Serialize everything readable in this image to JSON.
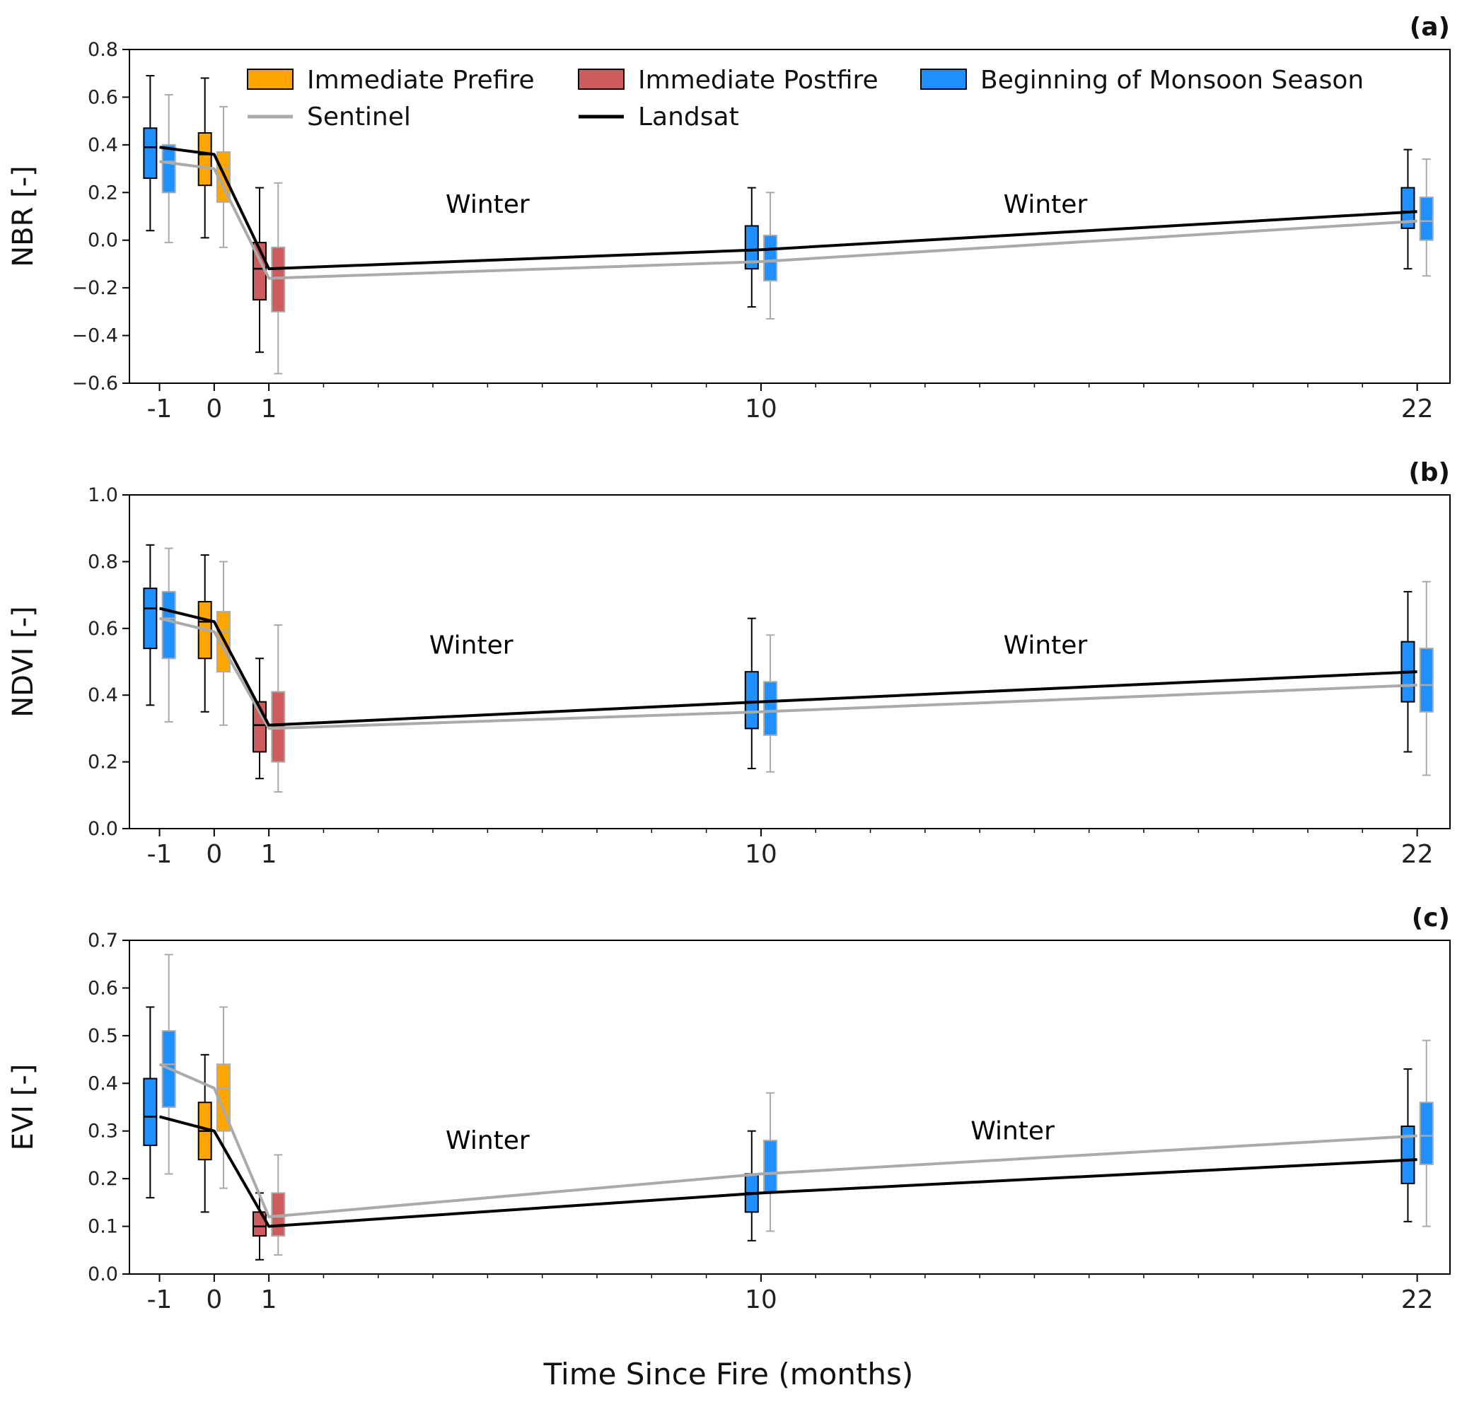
{
  "chart_data": {
    "type": "box+line",
    "xlabel": "Time Since Fire (months)",
    "x_ticks": [
      -1,
      0,
      1,
      10,
      22
    ],
    "x_range": [
      -1.55,
      22.6
    ],
    "legend": {
      "placement": "top of panel (a)",
      "entries": [
        {
          "label": "Immediate Prefire",
          "kind": "box",
          "color": "#FFA500"
        },
        {
          "label": "Immediate Postfire",
          "kind": "box",
          "color": "#CD5C5C"
        },
        {
          "label": "Beginning of Monsoon Season",
          "kind": "box",
          "color": "#1E90FF"
        },
        {
          "label": "Sentinel",
          "kind": "line",
          "color": "#AAAAAA"
        },
        {
          "label": "Landsat",
          "kind": "line",
          "color": "#000000"
        }
      ]
    },
    "box_colors_by_x": {
      "-1": "#1E90FF",
      "0": "#FFA500",
      "1": "#CD5C5C",
      "10": "#1E90FF",
      "22": "#1E90FF"
    },
    "panels": [
      {
        "id": "a",
        "label": "(a)",
        "ylabel": "NBR [-]",
        "ylim": [
          -0.6,
          0.8
        ],
        "yticks": [
          -0.6,
          -0.4,
          -0.2,
          0.0,
          0.2,
          0.4,
          0.6,
          0.8
        ],
        "ytick_labels": [
          "−0.6",
          "−0.4",
          "−0.2",
          "0.0",
          "0.2",
          "0.4",
          "0.6",
          "0.8"
        ],
        "annotations": [
          {
            "text": "Winter",
            "x": 5.0,
            "y": 0.15
          },
          {
            "text": "Winter",
            "x": 15.2,
            "y": 0.15
          }
        ],
        "series": [
          {
            "name": "Landsat",
            "line_values": [
              0.39,
              0.36,
              -0.12,
              -0.04,
              0.12
            ],
            "boxes": [
              {
                "x": -1,
                "whislo": 0.04,
                "q1": 0.26,
                "med": 0.39,
                "q3": 0.47,
                "whishi": 0.69
              },
              {
                "x": 0,
                "whislo": 0.01,
                "q1": 0.23,
                "med": 0.36,
                "q3": 0.45,
                "whishi": 0.68
              },
              {
                "x": 1,
                "whislo": -0.47,
                "q1": -0.25,
                "med": -0.12,
                "q3": -0.01,
                "whishi": 0.22
              },
              {
                "x": 10,
                "whislo": -0.28,
                "q1": -0.12,
                "med": -0.04,
                "q3": 0.06,
                "whishi": 0.22
              },
              {
                "x": 22,
                "whislo": -0.12,
                "q1": 0.05,
                "med": 0.12,
                "q3": 0.22,
                "whishi": 0.38
              }
            ]
          },
          {
            "name": "Sentinel",
            "line_values": [
              0.33,
              0.3,
              -0.16,
              -0.09,
              0.08
            ],
            "boxes": [
              {
                "x": -1,
                "whislo": -0.01,
                "q1": 0.2,
                "med": 0.33,
                "q3": 0.4,
                "whishi": 0.61
              },
              {
                "x": 0,
                "whislo": -0.03,
                "q1": 0.16,
                "med": 0.3,
                "q3": 0.37,
                "whishi": 0.56
              },
              {
                "x": 1,
                "whislo": -0.56,
                "q1": -0.3,
                "med": -0.16,
                "q3": -0.03,
                "whishi": 0.24
              },
              {
                "x": 10,
                "whislo": -0.33,
                "q1": -0.17,
                "med": -0.09,
                "q3": 0.02,
                "whishi": 0.2
              },
              {
                "x": 22,
                "whislo": -0.15,
                "q1": 0.0,
                "med": 0.08,
                "q3": 0.18,
                "whishi": 0.34
              }
            ]
          }
        ]
      },
      {
        "id": "b",
        "label": "(b)",
        "ylabel": "NDVI [-]",
        "ylim": [
          0.0,
          1.0
        ],
        "yticks": [
          0.0,
          0.2,
          0.4,
          0.6,
          0.8,
          1.0
        ],
        "ytick_labels": [
          "0.0",
          "0.2",
          "0.4",
          "0.6",
          "0.8",
          "1.0"
        ],
        "annotations": [
          {
            "text": "Winter",
            "x": 4.7,
            "y": 0.55
          },
          {
            "text": "Winter",
            "x": 15.2,
            "y": 0.55
          }
        ],
        "series": [
          {
            "name": "Landsat",
            "line_values": [
              0.66,
              0.62,
              0.31,
              0.38,
              0.47
            ],
            "boxes": [
              {
                "x": -1,
                "whislo": 0.37,
                "q1": 0.54,
                "med": 0.66,
                "q3": 0.72,
                "whishi": 0.85
              },
              {
                "x": 0,
                "whislo": 0.35,
                "q1": 0.51,
                "med": 0.62,
                "q3": 0.68,
                "whishi": 0.82
              },
              {
                "x": 1,
                "whislo": 0.15,
                "q1": 0.23,
                "med": 0.31,
                "q3": 0.38,
                "whishi": 0.51
              },
              {
                "x": 10,
                "whislo": 0.18,
                "q1": 0.3,
                "med": 0.38,
                "q3": 0.47,
                "whishi": 0.63
              },
              {
                "x": 22,
                "whislo": 0.23,
                "q1": 0.38,
                "med": 0.47,
                "q3": 0.56,
                "whishi": 0.71
              }
            ]
          },
          {
            "name": "Sentinel",
            "line_values": [
              0.63,
              0.59,
              0.3,
              0.35,
              0.43
            ],
            "boxes": [
              {
                "x": -1,
                "whislo": 0.32,
                "q1": 0.51,
                "med": 0.63,
                "q3": 0.71,
                "whishi": 0.84
              },
              {
                "x": 0,
                "whislo": 0.31,
                "q1": 0.47,
                "med": 0.59,
                "q3": 0.65,
                "whishi": 0.8
              },
              {
                "x": 1,
                "whislo": 0.11,
                "q1": 0.2,
                "med": 0.3,
                "q3": 0.41,
                "whishi": 0.61
              },
              {
                "x": 10,
                "whislo": 0.17,
                "q1": 0.28,
                "med": 0.35,
                "q3": 0.44,
                "whishi": 0.58
              },
              {
                "x": 22,
                "whislo": 0.16,
                "q1": 0.35,
                "med": 0.43,
                "q3": 0.54,
                "whishi": 0.74
              }
            ]
          }
        ]
      },
      {
        "id": "c",
        "label": "(c)",
        "ylabel": "EVI [-]",
        "ylim": [
          0.0,
          0.7
        ],
        "yticks": [
          0.0,
          0.1,
          0.2,
          0.3,
          0.4,
          0.5,
          0.6,
          0.7
        ],
        "ytick_labels": [
          "0.0",
          "0.1",
          "0.2",
          "0.3",
          "0.4",
          "0.5",
          "0.6",
          "0.7"
        ],
        "annotations": [
          {
            "text": "Winter",
            "x": 5.0,
            "y": 0.28
          },
          {
            "text": "Winter",
            "x": 14.6,
            "y": 0.3
          }
        ],
        "series": [
          {
            "name": "Landsat",
            "line_values": [
              0.33,
              0.3,
              0.1,
              0.17,
              0.24
            ],
            "boxes": [
              {
                "x": -1,
                "whislo": 0.16,
                "q1": 0.27,
                "med": 0.33,
                "q3": 0.41,
                "whishi": 0.56
              },
              {
                "x": 0,
                "whislo": 0.13,
                "q1": 0.24,
                "med": 0.3,
                "q3": 0.36,
                "whishi": 0.46
              },
              {
                "x": 1,
                "whislo": 0.03,
                "q1": 0.08,
                "med": 0.1,
                "q3": 0.13,
                "whishi": 0.17
              },
              {
                "x": 10,
                "whislo": 0.07,
                "q1": 0.13,
                "med": 0.17,
                "q3": 0.21,
                "whishi": 0.3
              },
              {
                "x": 22,
                "whislo": 0.11,
                "q1": 0.19,
                "med": 0.24,
                "q3": 0.31,
                "whishi": 0.43
              }
            ]
          },
          {
            "name": "Sentinel",
            "line_values": [
              0.44,
              0.39,
              0.12,
              0.21,
              0.29
            ],
            "boxes": [
              {
                "x": -1,
                "whislo": 0.21,
                "q1": 0.35,
                "med": 0.44,
                "q3": 0.51,
                "whishi": 0.67
              },
              {
                "x": 0,
                "whislo": 0.18,
                "q1": 0.3,
                "med": 0.39,
                "q3": 0.44,
                "whishi": 0.56
              },
              {
                "x": 1,
                "whislo": 0.04,
                "q1": 0.08,
                "med": 0.12,
                "q3": 0.17,
                "whishi": 0.25
              },
              {
                "x": 10,
                "whislo": 0.09,
                "q1": 0.17,
                "med": 0.21,
                "q3": 0.28,
                "whishi": 0.38
              },
              {
                "x": 22,
                "whislo": 0.1,
                "q1": 0.23,
                "med": 0.29,
                "q3": 0.36,
                "whishi": 0.49
              }
            ]
          }
        ]
      }
    ]
  }
}
